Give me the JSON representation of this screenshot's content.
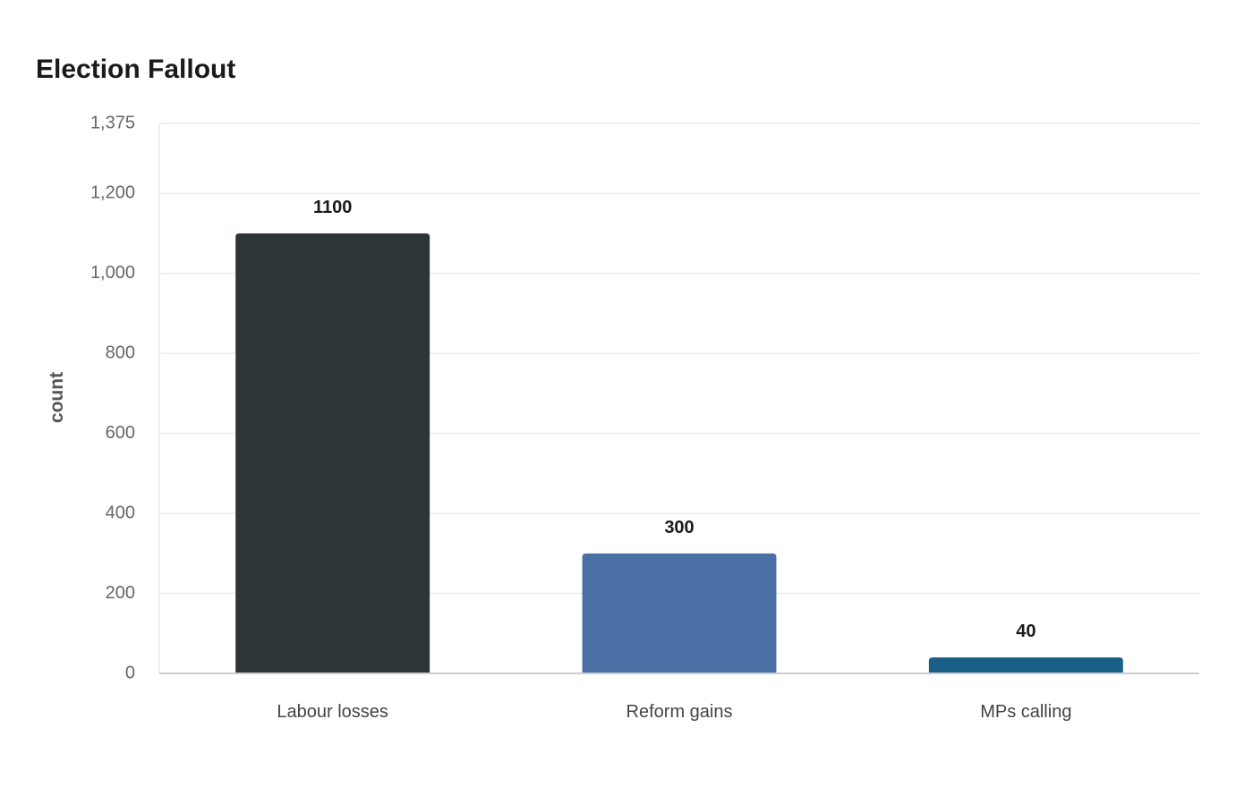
{
  "chart_data": {
    "type": "bar",
    "title": "Election Fallout",
    "xlabel": "",
    "ylabel": "count",
    "categories": [
      "Labour losses",
      "Reform gains",
      "MPs calling"
    ],
    "values": [
      1100,
      300,
      40
    ],
    "data_labels": [
      "1100",
      "300",
      "40"
    ],
    "colors": [
      "#2e3538",
      "#4a6fa5",
      "#1a5f87"
    ],
    "ylim": [
      0,
      1375
    ],
    "yticks": [
      0,
      200,
      400,
      600,
      800,
      1000,
      1200,
      1375
    ],
    "ytick_labels": [
      "0",
      "200",
      "400",
      "600",
      "800",
      "1,000",
      "1,200",
      "1,375"
    ],
    "grid": true,
    "legend": "none",
    "grid_color": "#ebebeb",
    "axis_color": "#cccccc"
  }
}
